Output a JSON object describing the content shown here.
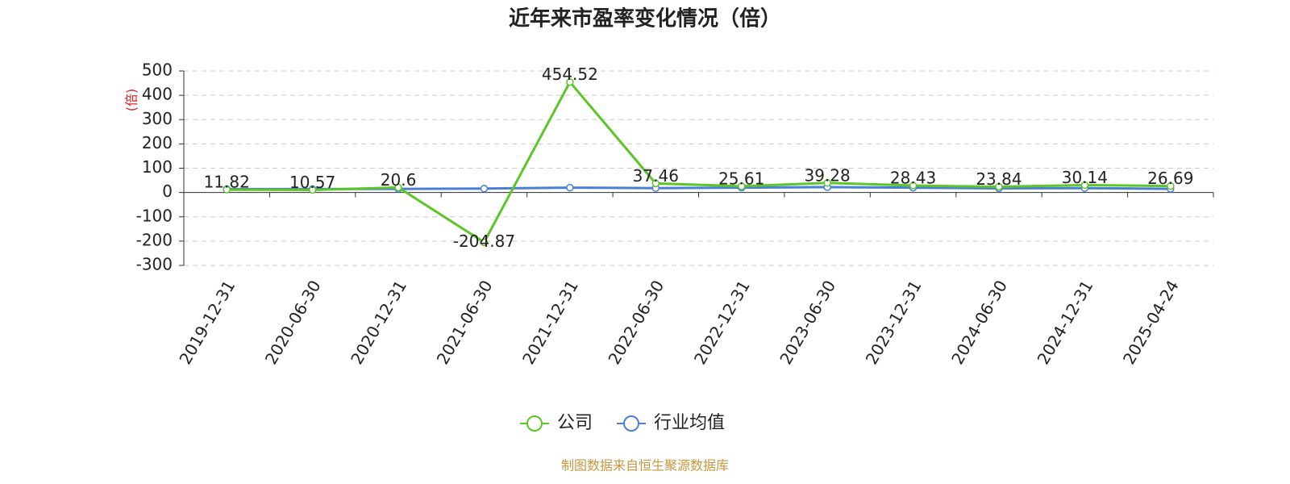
{
  "chart_data": {
    "type": "line",
    "title": "近年来市盈率变化情况（倍）",
    "y_label": "(倍)",
    "source": "制图数据来自恒生聚源数据库",
    "categories": [
      "2019-12-31",
      "2020-06-30",
      "2020-12-31",
      "2021-06-30",
      "2021-12-31",
      "2022-06-30",
      "2022-12-31",
      "2023-06-30",
      "2023-12-31",
      "2024-06-30",
      "2024-12-31",
      "2025-04-24"
    ],
    "series": [
      {
        "name": "公司",
        "color": "#5cc527",
        "values": [
          11.82,
          10.57,
          20.6,
          -204.87,
          454.52,
          37.46,
          25.61,
          39.28,
          28.43,
          23.84,
          30.14,
          26.69
        ],
        "labels": true
      },
      {
        "name": "行业均值",
        "color": "#4a7fd8",
        "values": [
          14,
          14,
          15,
          16,
          20,
          18,
          20,
          22,
          20,
          17,
          18,
          15
        ],
        "labels": false
      }
    ],
    "ylim": [
      -300,
      500
    ],
    "yticks": [
      -300,
      -200,
      -100,
      0,
      100,
      200,
      300,
      400,
      500
    ],
    "grid": true
  }
}
